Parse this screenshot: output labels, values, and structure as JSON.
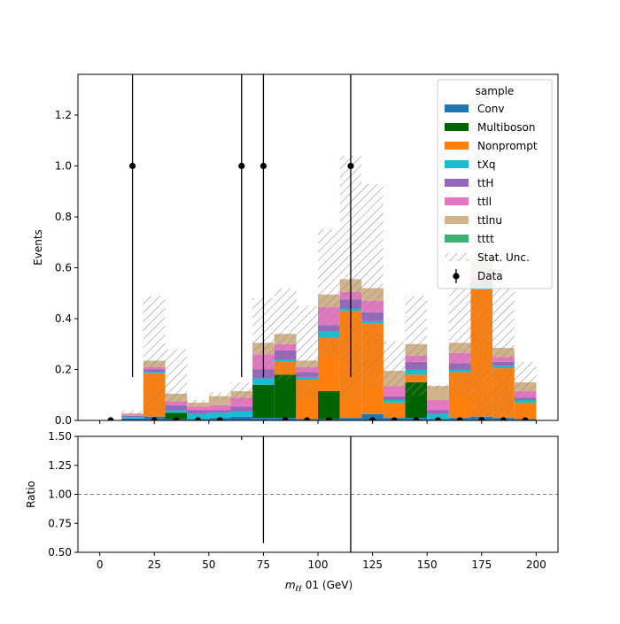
{
  "chart_data": [
    {
      "type": "bar",
      "stacked": true,
      "ylabel": "Events",
      "ylim": [
        0,
        1.36
      ],
      "xlim": [
        -10,
        210
      ],
      "bin_edges": [
        0,
        10,
        20,
        30,
        40,
        50,
        60,
        70,
        80,
        90,
        100,
        110,
        120,
        130,
        140,
        150,
        160,
        170,
        180,
        190,
        200
      ],
      "y_ticks": [
        "0.0",
        "0.2",
        "0.4",
        "0.6",
        "0.8",
        "1.0",
        "1.2"
      ],
      "legend": {
        "title": "sample",
        "placement": "top-right"
      },
      "series": [
        {
          "name": "Conv",
          "color": "#1f77b4",
          "values": [
            0,
            0.008,
            0.015,
            0.005,
            0.005,
            0.01,
            0.015,
            0.01,
            0.01,
            0.005,
            0.005,
            0.01,
            0.025,
            0.01,
            0.01,
            0.005,
            0.01,
            0.015,
            0.01,
            0.005
          ]
        },
        {
          "name": "Multiboson",
          "color": "#006400",
          "values": [
            0,
            0,
            0,
            0.025,
            0,
            0,
            0,
            0.13,
            0.17,
            0,
            0.11,
            0,
            0,
            0,
            0.14,
            0,
            0,
            0,
            0,
            0
          ]
        },
        {
          "name": "Nonprompt",
          "color": "#ff7f0e",
          "values": [
            0,
            0,
            0.17,
            0,
            0,
            0,
            0,
            0,
            0.05,
            0.155,
            0.21,
            0.42,
            0.355,
            0.06,
            0.03,
            0,
            0.18,
            0.5,
            0.195,
            0.065
          ]
        },
        {
          "name": "tXq",
          "color": "#17becf",
          "values": [
            0,
            0.005,
            0.005,
            0.01,
            0.02,
            0.02,
            0.02,
            0.025,
            0.01,
            0.01,
            0.025,
            0.01,
            0.01,
            0.01,
            0.02,
            0.02,
            0.01,
            0.01,
            0.01,
            0.01
          ]
        },
        {
          "name": "ttH",
          "color": "#9467bd",
          "values": [
            0,
            0.005,
            0.01,
            0.02,
            0.015,
            0.01,
            0.02,
            0.035,
            0.035,
            0.02,
            0.025,
            0.035,
            0.035,
            0.015,
            0.03,
            0.015,
            0.025,
            0.02,
            0.015,
            0.01
          ]
        },
        {
          "name": "ttll",
          "color": "#e377c2",
          "values": [
            0,
            0.005,
            0.01,
            0.015,
            0.015,
            0.02,
            0.035,
            0.06,
            0.025,
            0.02,
            0.07,
            0.03,
            0.045,
            0.04,
            0.025,
            0.04,
            0.04,
            0.025,
            0.02,
            0.025
          ]
        },
        {
          "name": "ttlnu",
          "color": "#d2b48c",
          "values": [
            0,
            0.005,
            0.025,
            0.03,
            0.015,
            0.035,
            0.025,
            0.045,
            0.04,
            0.025,
            0.05,
            0.05,
            0.05,
            0.06,
            0.045,
            0.055,
            0.04,
            0.055,
            0.035,
            0.035
          ]
        },
        {
          "name": "tttt",
          "color": "#3cb371",
          "values": [
            0,
            0,
            0,
            0,
            0,
            0,
            0,
            0,
            0,
            0,
            0,
            0,
            0,
            0,
            0,
            0,
            0,
            0,
            0,
            0
          ]
        }
      ],
      "stat_unc": {
        "name": "Stat. Unc.",
        "low": [
          0,
          0.02,
          0,
          0.05,
          0.06,
          0.08,
          0.07,
          0.17,
          0.16,
          0.08,
          0.25,
          0.07,
          0.13,
          0.13,
          0.1,
          0.12,
          0.1,
          0,
          0,
          0.07
        ],
        "high": [
          0,
          0.04,
          0.49,
          0.28,
          0.08,
          0.11,
          0.15,
          0.48,
          0.52,
          0.45,
          0.75,
          1.04,
          0.93,
          0.31,
          0.49,
          0.14,
          0.6,
          1.13,
          0.63,
          0.23
        ]
      },
      "data": {
        "name": "Data",
        "x": [
          5,
          15,
          25,
          35,
          45,
          55,
          65,
          75,
          85,
          95,
          105,
          115,
          125,
          135,
          145,
          155,
          165,
          175,
          185,
          195
        ],
        "y": [
          0,
          1,
          0,
          0,
          0,
          0,
          1,
          1,
          0,
          0,
          0,
          1,
          0,
          0,
          0,
          0,
          0,
          0,
          0,
          0
        ],
        "err_up": [
          0,
          1.36,
          0,
          0,
          0,
          0,
          1.36,
          1.36,
          0,
          0,
          0,
          1.36,
          0,
          0,
          0,
          0,
          0,
          0,
          0,
          0
        ],
        "err_down": [
          0,
          0.83,
          0,
          0,
          0,
          0,
          0.83,
          0.83,
          0,
          0,
          0,
          0.83,
          0,
          0,
          0,
          0,
          0,
          0,
          0,
          0
        ]
      }
    },
    {
      "type": "scatter",
      "ylabel": "Ratio",
      "xlabel": "m_{ℓℓ} 01 (GeV)",
      "ylim": [
        0.5,
        1.5
      ],
      "xlim": [
        -10,
        210
      ],
      "x_ticks": [
        "0",
        "25",
        "50",
        "75",
        "100",
        "125",
        "150",
        "175",
        "200"
      ],
      "y_ticks": [
        "0.50",
        "0.75",
        "1.00",
        "1.25",
        "1.50"
      ],
      "reference_line": 1.0,
      "ratio_errorbars": [
        {
          "x": 65,
          "low": 1.47,
          "high": 1.5
        },
        {
          "x": 75,
          "low": 0.58,
          "high": 1.5
        },
        {
          "x": 115,
          "low": 0.5,
          "high": 1.5
        }
      ]
    }
  ],
  "axis_text": {
    "xlabel_main": "m",
    "xlabel_sub": "ℓℓ",
    "xlabel_rest": " 01 (GeV)"
  }
}
